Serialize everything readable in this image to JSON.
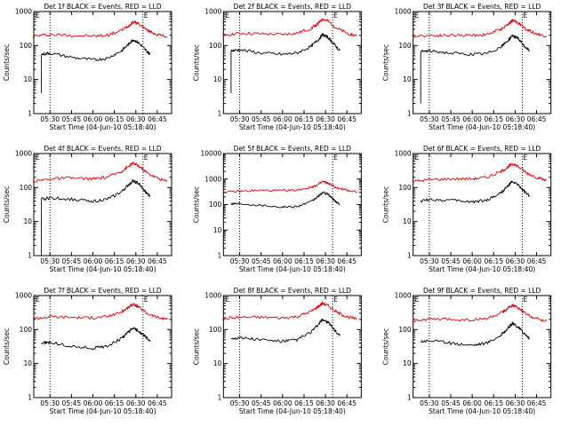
{
  "panel_layout": {
    "columns": 3,
    "rows": 3
  },
  "colors": {
    "events": "#000000",
    "lld": "#e00000",
    "axis": "#000000"
  },
  "chart_data": [
    {
      "type": "line",
      "title": "Det 1f BLACK = Events, RED = LLD",
      "xlabel": "Start Time (04-Jun-10 05:18:40)",
      "ylabel": "Counts/sec",
      "xlim": [
        "05:18:40",
        "06:55:00"
      ],
      "ylim": [
        1,
        1000
      ],
      "yscale": "log",
      "x_ticks": [
        "05:30",
        "05:45",
        "06:00",
        "06:15",
        "06:30",
        "06:45"
      ],
      "y_ticks": [
        "1",
        "10",
        "100",
        "1000"
      ],
      "markers": [
        {
          "time": "05:30",
          "label": ""
        },
        {
          "time": "06:35",
          "label": "E"
        }
      ],
      "corner_marks": [
        "E"
      ],
      "series": [
        {
          "color": "#e00000",
          "x": [
            "05:18",
            "05:30",
            "05:45",
            "06:00",
            "06:10",
            "06:20",
            "06:25",
            "06:28",
            "06:32",
            "06:38",
            "06:45",
            "06:52"
          ],
          "values": [
            190,
            210,
            200,
            190,
            200,
            280,
            380,
            500,
            440,
            280,
            210,
            180
          ]
        },
        {
          "color": "#000000",
          "start_drop": 4,
          "x": [
            "05:24",
            "05:30",
            "05:45",
            "06:00",
            "06:10",
            "06:20",
            "06:25",
            "06:28",
            "06:32",
            "06:36",
            "06:40"
          ],
          "values": [
            55,
            60,
            45,
            38,
            42,
            70,
            110,
            150,
            120,
            80,
            55
          ]
        }
      ]
    },
    {
      "type": "line",
      "title": "Det 2f BLACK = Events, RED = LLD",
      "xlabel": "Start Time (04-Jun-10 05:18:40)",
      "ylabel": "Counts/sec",
      "xlim": [
        "05:18:40",
        "06:55:00"
      ],
      "ylim": [
        1,
        1000
      ],
      "yscale": "log",
      "x_ticks": [
        "05:30",
        "05:45",
        "06:00",
        "06:15",
        "06:30",
        "06:45"
      ],
      "y_ticks": [
        "1",
        "10",
        "100",
        "1000"
      ],
      "markers": [
        {
          "time": "05:30",
          "label": ""
        },
        {
          "time": "06:35",
          "label": "E"
        }
      ],
      "corner_marks": [
        "E"
      ],
      "series": [
        {
          "color": "#e00000",
          "x": [
            "05:18",
            "05:30",
            "05:45",
            "06:00",
            "06:10",
            "06:20",
            "06:25",
            "06:28",
            "06:32",
            "06:38",
            "06:45",
            "06:52"
          ],
          "values": [
            200,
            230,
            220,
            210,
            230,
            320,
            450,
            600,
            520,
            320,
            230,
            190
          ]
        },
        {
          "color": "#000000",
          "start_drop": 4,
          "x": [
            "05:24",
            "05:30",
            "05:45",
            "06:00",
            "06:10",
            "06:20",
            "06:25",
            "06:28",
            "06:32",
            "06:36",
            "06:40"
          ],
          "values": [
            70,
            75,
            60,
            55,
            60,
            95,
            150,
            210,
            170,
            110,
            70
          ]
        }
      ]
    },
    {
      "type": "line",
      "title": "Det 3f BLACK = Events, RED = LLD",
      "xlabel": "Start Time (04-Jun-10 05:18:40)",
      "ylabel": "Counts/sec",
      "xlim": [
        "05:18:40",
        "06:55:00"
      ],
      "ylim": [
        1,
        1000
      ],
      "yscale": "log",
      "x_ticks": [
        "05:30",
        "05:45",
        "06:00",
        "06:15",
        "06:30",
        "06:45"
      ],
      "y_ticks": [
        "1",
        "10",
        "100",
        "1000"
      ],
      "markers": [
        {
          "time": "05:30",
          "label": ""
        },
        {
          "time": "06:35",
          "label": "E"
        }
      ],
      "corner_marks": [
        "E"
      ],
      "series": [
        {
          "color": "#e00000",
          "x": [
            "05:18",
            "05:30",
            "05:45",
            "06:00",
            "06:10",
            "06:20",
            "06:25",
            "06:28",
            "06:32",
            "06:38",
            "06:45",
            "06:52"
          ],
          "values": [
            190,
            200,
            200,
            200,
            210,
            300,
            420,
            550,
            470,
            300,
            220,
            190
          ]
        },
        {
          "color": "#000000",
          "start_drop": 2,
          "x": [
            "05:24",
            "05:30",
            "05:45",
            "06:00",
            "06:10",
            "06:20",
            "06:25",
            "06:28",
            "06:32",
            "06:36",
            "06:40"
          ],
          "values": [
            65,
            70,
            60,
            55,
            58,
            90,
            140,
            200,
            160,
            100,
            70
          ]
        }
      ]
    },
    {
      "type": "line",
      "title": "Det 4f BLACK = Events, RED = LLD",
      "xlabel": "Start Time (04-Jun-10 05:18:40)",
      "ylabel": "Counts/sec",
      "xlim": [
        "05:18:40",
        "06:55:00"
      ],
      "ylim": [
        1,
        1000
      ],
      "yscale": "log",
      "x_ticks": [
        "05:30",
        "05:45",
        "06:00",
        "06:15",
        "06:30",
        "06:45"
      ],
      "y_ticks": [
        "1",
        "10",
        "100",
        "1000"
      ],
      "markers": [
        {
          "time": "05:30",
          "label": ""
        },
        {
          "time": "06:35",
          "label": "E"
        }
      ],
      "corner_marks": [
        "E"
      ],
      "series": [
        {
          "color": "#e00000",
          "x": [
            "05:18",
            "05:30",
            "05:45",
            "06:00",
            "06:10",
            "06:20",
            "06:25",
            "06:28",
            "06:32",
            "06:38",
            "06:45",
            "06:52"
          ],
          "values": [
            150,
            180,
            190,
            180,
            200,
            300,
            420,
            520,
            430,
            270,
            190,
            150
          ]
        },
        {
          "color": "#000000",
          "start_drop": 1,
          "x": [
            "05:24",
            "05:30",
            "05:45",
            "06:00",
            "06:10",
            "06:20",
            "06:25",
            "06:28",
            "06:32",
            "06:36",
            "06:40"
          ],
          "values": [
            45,
            50,
            45,
            40,
            45,
            75,
            120,
            160,
            130,
            80,
            55
          ]
        }
      ]
    },
    {
      "type": "line",
      "title": "Det 5f BLACK = Events, RED = LLD",
      "xlabel": "Start Time (04-Jun-10 05:18:40)",
      "ylabel": "Counts/sec",
      "xlim": [
        "05:18:40",
        "06:55:00"
      ],
      "ylim": [
        1,
        10000
      ],
      "yscale": "log",
      "x_ticks": [
        "05:30",
        "05:45",
        "06:00",
        "06:15",
        "06:30",
        "06:45"
      ],
      "y_ticks": [
        "1",
        "10",
        "100",
        "1000",
        "10000"
      ],
      "markers": [
        {
          "time": "05:30",
          "label": ""
        },
        {
          "time": "06:35",
          "label": "E"
        }
      ],
      "corner_marks": [],
      "series": [
        {
          "color": "#e00000",
          "x": [
            "05:18",
            "05:30",
            "05:45",
            "06:00",
            "06:10",
            "06:20",
            "06:25",
            "06:28",
            "06:32",
            "06:38",
            "06:45",
            "06:52"
          ],
          "values": [
            300,
            330,
            360,
            350,
            370,
            480,
            620,
            800,
            680,
            450,
            360,
            320
          ]
        },
        {
          "color": "#000000",
          "x": [
            "05:24",
            "05:30",
            "05:45",
            "06:00",
            "06:10",
            "06:20",
            "06:25",
            "06:28",
            "06:32",
            "06:36",
            "06:40"
          ],
          "values": [
            110,
            110,
            95,
            80,
            85,
            130,
            210,
            300,
            250,
            150,
            100
          ]
        }
      ]
    },
    {
      "type": "line",
      "title": "Det 6f BLACK = Events, RED = LLD",
      "xlabel": "Start Time (04-Jun-10 05:18:40)",
      "ylabel": "Counts/sec",
      "xlim": [
        "05:18:40",
        "06:55:00"
      ],
      "ylim": [
        1,
        1000
      ],
      "yscale": "log",
      "x_ticks": [
        "05:30",
        "05:45",
        "06:00",
        "06:15",
        "06:30",
        "06:45"
      ],
      "y_ticks": [
        "1",
        "10",
        "100",
        "1000"
      ],
      "markers": [
        {
          "time": "05:30",
          "label": ""
        },
        {
          "time": "06:35",
          "label": "E"
        }
      ],
      "corner_marks": [
        "E"
      ],
      "series": [
        {
          "color": "#e00000",
          "x": [
            "05:18",
            "05:30",
            "05:45",
            "06:00",
            "06:10",
            "06:20",
            "06:25",
            "06:28",
            "06:32",
            "06:38",
            "06:45",
            "06:52"
          ],
          "values": [
            150,
            170,
            180,
            180,
            200,
            290,
            400,
            500,
            420,
            270,
            200,
            160
          ]
        },
        {
          "color": "#000000",
          "x": [
            "05:24",
            "05:30",
            "05:45",
            "06:00",
            "06:10",
            "06:20",
            "06:25",
            "06:28",
            "06:32",
            "06:36",
            "06:40"
          ],
          "values": [
            40,
            45,
            42,
            38,
            42,
            70,
            110,
            150,
            120,
            80,
            55
          ]
        }
      ]
    },
    {
      "type": "line",
      "title": "Det 7f BLACK = Events, RED = LLD",
      "xlabel": "Start Time (04-Jun-10 05:18:40)",
      "ylabel": "Counts/sec",
      "xlim": [
        "05:18:40",
        "06:55:00"
      ],
      "ylim": [
        1,
        1000
      ],
      "yscale": "log",
      "x_ticks": [
        "05:30",
        "05:45",
        "06:00",
        "06:15",
        "06:30",
        "06:45"
      ],
      "y_ticks": [
        "1",
        "10",
        "100",
        "1000"
      ],
      "markers": [
        {
          "time": "05:30",
          "label": ""
        },
        {
          "time": "06:35",
          "label": "E"
        }
      ],
      "corner_marks": [
        "E"
      ],
      "series": [
        {
          "color": "#e00000",
          "x": [
            "05:18",
            "05:30",
            "05:45",
            "06:00",
            "06:10",
            "06:20",
            "06:25",
            "06:28",
            "06:32",
            "06:38",
            "06:45",
            "06:52"
          ],
          "values": [
            210,
            240,
            230,
            220,
            240,
            330,
            450,
            560,
            460,
            300,
            230,
            200
          ]
        },
        {
          "color": "#000000",
          "x": [
            "05:24",
            "05:30",
            "05:45",
            "06:00",
            "06:10",
            "06:20",
            "06:25",
            "06:28",
            "06:32",
            "06:36",
            "06:40"
          ],
          "values": [
            40,
            42,
            32,
            28,
            33,
            55,
            85,
            110,
            90,
            65,
            45
          ]
        }
      ]
    },
    {
      "type": "line",
      "title": "Det 8f BLACK = Events, RED = LLD",
      "xlabel": "Start Time (04-Jun-10 05:18:40)",
      "ylabel": "Counts/sec",
      "xlim": [
        "05:18:40",
        "06:55:00"
      ],
      "ylim": [
        1,
        1000
      ],
      "yscale": "log",
      "x_ticks": [
        "05:30",
        "05:45",
        "06:00",
        "06:15",
        "06:30",
        "06:45"
      ],
      "y_ticks": [
        "1",
        "10",
        "100",
        "1000"
      ],
      "markers": [
        {
          "time": "05:30",
          "label": ""
        },
        {
          "time": "06:35",
          "label": "E"
        }
      ],
      "corner_marks": [
        "E"
      ],
      "series": [
        {
          "color": "#e00000",
          "x": [
            "05:18",
            "05:30",
            "05:45",
            "06:00",
            "06:10",
            "06:20",
            "06:25",
            "06:28",
            "06:32",
            "06:38",
            "06:45",
            "06:52"
          ],
          "values": [
            210,
            230,
            230,
            220,
            240,
            340,
            480,
            600,
            500,
            320,
            240,
            200
          ]
        },
        {
          "color": "#000000",
          "x": [
            "05:24",
            "05:30",
            "05:45",
            "06:00",
            "06:10",
            "06:20",
            "06:25",
            "06:28",
            "06:32",
            "06:36",
            "06:40"
          ],
          "values": [
            55,
            58,
            50,
            45,
            50,
            85,
            140,
            200,
            160,
            100,
            65
          ]
        }
      ]
    },
    {
      "type": "line",
      "title": "Det 9f BLACK = Events, RED = LLD",
      "xlabel": "Start Time (04-Jun-10 05:18:40)",
      "ylabel": "Counts/sec",
      "xlim": [
        "05:18:40",
        "06:55:00"
      ],
      "ylim": [
        1,
        1000
      ],
      "yscale": "log",
      "x_ticks": [
        "05:30",
        "05:45",
        "06:00",
        "06:15",
        "06:30",
        "06:45"
      ],
      "y_ticks": [
        "1",
        "10",
        "100",
        "1000"
      ],
      "markers": [
        {
          "time": "05:30",
          "label": ""
        },
        {
          "time": "06:35",
          "label": "E"
        }
      ],
      "corner_marks": [
        "E"
      ],
      "series": [
        {
          "color": "#e00000",
          "x": [
            "05:18",
            "05:30",
            "05:45",
            "06:00",
            "06:10",
            "06:20",
            "06:25",
            "06:28",
            "06:32",
            "06:38",
            "06:45",
            "06:52"
          ],
          "values": [
            180,
            200,
            200,
            190,
            210,
            300,
            420,
            520,
            430,
            280,
            210,
            180
          ]
        },
        {
          "color": "#000000",
          "x": [
            "05:24",
            "05:30",
            "05:45",
            "06:00",
            "06:10",
            "06:20",
            "06:25",
            "06:28",
            "06:32",
            "06:36",
            "06:40"
          ],
          "values": [
            45,
            48,
            40,
            35,
            40,
            68,
            110,
            150,
            120,
            80,
            55
          ]
        }
      ]
    }
  ]
}
